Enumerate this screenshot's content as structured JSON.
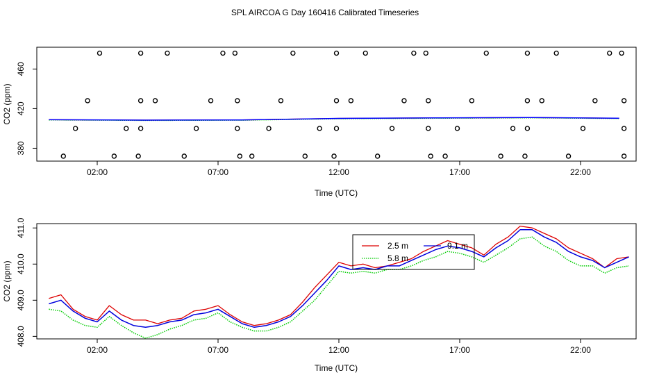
{
  "title": "SPL AIRCOA G  Day 160416  Calibrated Timeseries",
  "chart_data": [
    {
      "type": "scatter",
      "xlabel": "Time (UTC)",
      "ylabel": "CO2 (ppm)",
      "xlim": [
        -0.5,
        24.3
      ],
      "ylim": [
        367,
        482
      ],
      "xticks": [
        2,
        7,
        12,
        17,
        22
      ],
      "xtick_labels": [
        "02:00",
        "07:00",
        "12:00",
        "17:00",
        "22:00"
      ],
      "yticks": [
        380,
        420,
        460
      ],
      "ytick_labels": [
        "380",
        "420",
        "460"
      ],
      "colors": {
        "points": "#000000",
        "red": "#ff0000",
        "green": "#00cc00",
        "blue": "#0000ff"
      },
      "points": {
        "x": [
          0.6,
          1.1,
          1.6,
          2.1,
          2.7,
          3.2,
          3.7,
          3.8,
          3.8,
          3.8,
          4.4,
          4.9,
          5.6,
          6.1,
          6.7,
          7.2,
          7.7,
          7.8,
          7.8,
          7.9,
          8.4,
          9.1,
          9.6,
          10.1,
          10.6,
          11.2,
          11.8,
          11.9,
          11.9,
          11.9,
          12.5,
          13.1,
          13.6,
          14.2,
          14.7,
          15.1,
          15.6,
          15.7,
          15.7,
          15.8,
          16.4,
          16.9,
          17.5,
          18.1,
          18.7,
          19.2,
          19.7,
          19.8,
          19.8,
          19.8,
          20.4,
          21.0,
          21.5,
          22.1,
          22.6,
          23.2,
          23.7,
          23.8,
          23.8,
          23.8
        ],
        "y": [
          372,
          400,
          428,
          476,
          372,
          400,
          372,
          400,
          428,
          476,
          428,
          476,
          372,
          400,
          428,
          476,
          476,
          428,
          400,
          372,
          372,
          400,
          428,
          476,
          372,
          400,
          372,
          400,
          428,
          476,
          428,
          476,
          372,
          400,
          428,
          476,
          476,
          428,
          400,
          372,
          372,
          400,
          428,
          476,
          372,
          400,
          372,
          400,
          428,
          476,
          428,
          476,
          372,
          400,
          428,
          476,
          476,
          428,
          400,
          372
        ]
      },
      "series": [
        {
          "x": [
            0,
            4,
            8,
            12,
            16,
            20,
            23.6
          ],
          "values": [
            408.8,
            408.4,
            408.6,
            410.1,
            410.6,
            411.0,
            410.3
          ]
        },
        {
          "x": [
            0,
            4,
            8,
            12,
            16,
            20,
            23.6
          ],
          "values": [
            408.6,
            408.1,
            408.3,
            409.8,
            410.3,
            410.7,
            410.0
          ]
        },
        {
          "x": [
            0,
            4,
            8,
            12,
            16,
            20,
            23.6
          ],
          "values": [
            408.8,
            408.4,
            408.6,
            410.1,
            410.6,
            411.0,
            410.3
          ]
        }
      ]
    },
    {
      "type": "line",
      "xlabel": "Time (UTC)",
      "ylabel": "CO2 (ppm)",
      "xlim": [
        -0.5,
        24.3
      ],
      "ylim": [
        407.93,
        411.12
      ],
      "xticks": [
        2,
        7,
        12,
        17,
        22
      ],
      "xtick_labels": [
        "02:00",
        "07:00",
        "12:00",
        "17:00",
        "22:00"
      ],
      "yticks": [
        408.0,
        409.0,
        410.0,
        411.0
      ],
      "ytick_labels": [
        "408.0",
        "409.0",
        "410.0",
        "411.0"
      ],
      "legend": {
        "placement": "top-center",
        "entries": [
          "2.5 m",
          "5.8 m",
          "9.1 m"
        ]
      },
      "colors": {
        "2.5 m": "#dd0000",
        "5.8 m": "#00cc00",
        "9.1 m": "#0000dd"
      },
      "x": [
        0.0,
        0.5,
        1.0,
        1.5,
        2.0,
        2.5,
        3.0,
        3.5,
        4.0,
        4.5,
        5.0,
        5.5,
        6.0,
        6.5,
        7.0,
        7.5,
        8.0,
        8.5,
        9.0,
        9.5,
        10.0,
        10.5,
        11.0,
        11.5,
        12.0,
        12.5,
        13.0,
        13.5,
        14.0,
        14.5,
        15.0,
        15.5,
        16.0,
        16.5,
        17.0,
        17.5,
        18.0,
        18.5,
        19.0,
        19.5,
        20.0,
        20.5,
        21.0,
        21.5,
        22.0,
        22.5,
        23.0,
        23.5,
        24.0
      ],
      "series": [
        {
          "name": "2.5 m",
          "values": [
            409.05,
            409.15,
            408.75,
            408.55,
            408.45,
            408.85,
            408.6,
            408.45,
            408.45,
            408.35,
            408.45,
            408.5,
            408.7,
            408.75,
            408.85,
            408.6,
            408.4,
            408.3,
            408.35,
            408.45,
            408.6,
            408.95,
            409.35,
            409.7,
            410.05,
            409.95,
            410.0,
            409.9,
            409.95,
            410.05,
            410.15,
            410.35,
            410.5,
            410.65,
            410.55,
            410.45,
            410.25,
            410.55,
            410.75,
            411.05,
            411.0,
            410.85,
            410.7,
            410.45,
            410.3,
            410.15,
            409.9,
            410.15,
            410.2
          ]
        },
        {
          "name": "5.8 m",
          "values": [
            408.75,
            408.7,
            408.45,
            408.3,
            408.25,
            408.55,
            408.3,
            408.1,
            407.95,
            408.05,
            408.2,
            408.3,
            408.45,
            408.5,
            408.65,
            408.4,
            408.25,
            408.15,
            408.15,
            408.25,
            408.4,
            408.7,
            409.0,
            409.4,
            409.8,
            409.75,
            409.8,
            409.75,
            409.85,
            409.85,
            409.95,
            410.1,
            410.2,
            410.35,
            410.3,
            410.2,
            410.05,
            410.25,
            410.45,
            410.7,
            410.75,
            410.5,
            410.35,
            410.1,
            409.95,
            409.95,
            409.75,
            409.9,
            409.95
          ]
        },
        {
          "name": "9.1 m",
          "values": [
            408.9,
            409.0,
            408.7,
            408.5,
            408.4,
            408.7,
            408.45,
            408.3,
            408.25,
            408.3,
            408.4,
            408.45,
            408.6,
            408.65,
            408.75,
            408.55,
            408.35,
            408.25,
            408.3,
            408.4,
            408.55,
            408.85,
            409.2,
            409.55,
            409.95,
            409.85,
            409.9,
            409.85,
            409.95,
            409.95,
            410.1,
            410.25,
            410.4,
            410.5,
            410.45,
            410.35,
            410.2,
            410.45,
            410.65,
            410.95,
            410.95,
            410.75,
            410.6,
            410.35,
            410.2,
            410.1,
            409.9,
            410.05,
            410.2
          ]
        }
      ]
    }
  ]
}
